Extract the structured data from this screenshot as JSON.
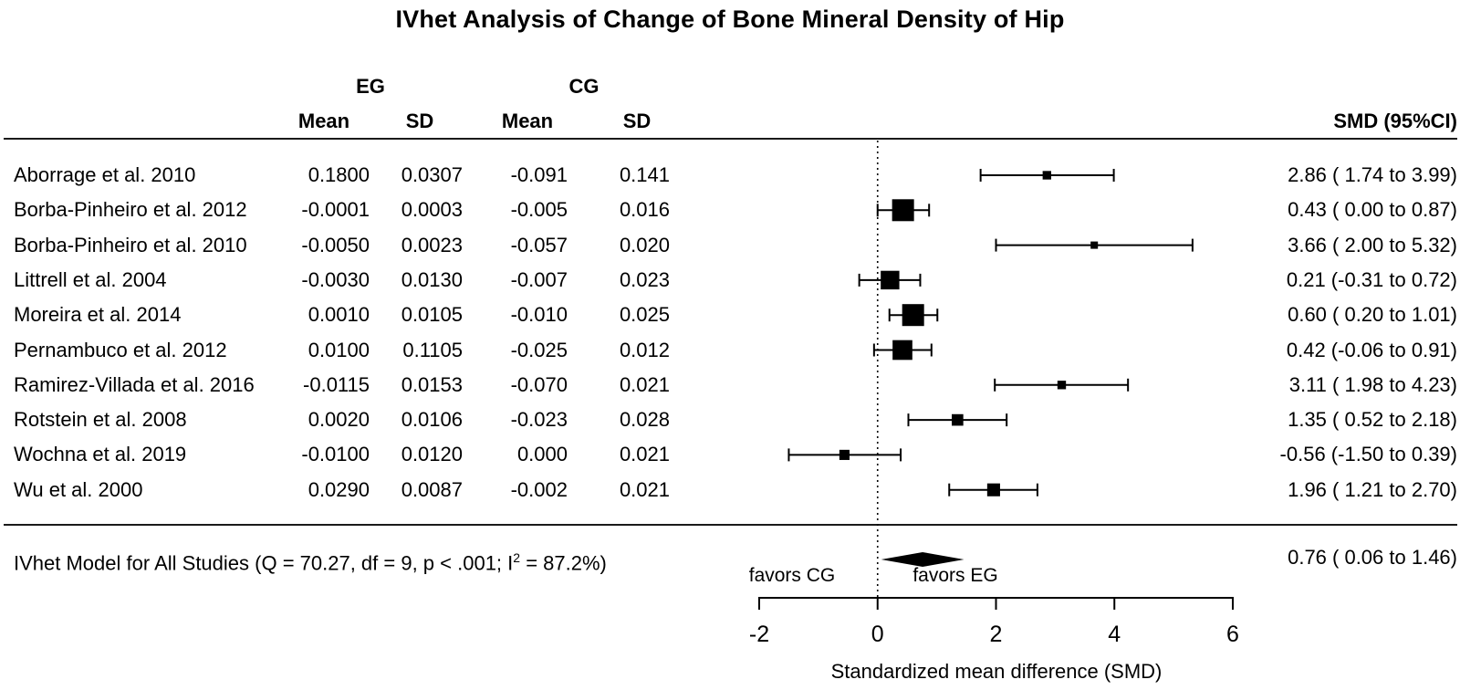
{
  "title": "IVhet Analysis of Change of Bone Mineral Density of Hip",
  "columns": {
    "eg_group": "EG",
    "cg_group": "CG",
    "eg_mean": "Mean",
    "eg_sd": "SD",
    "cg_mean": "Mean",
    "cg_sd": "SD",
    "smd_header": "SMD (95%CI)"
  },
  "chart_data": {
    "type": "forest",
    "title": "IVhet Analysis of Change of Bone Mineral Density of Hip",
    "xlabel": "Standardized mean difference (SMD)",
    "axis": {
      "min": -2,
      "max": 6,
      "ticks": [
        "-2",
        "0",
        "2",
        "4",
        "6"
      ],
      "tick_values": [
        -2,
        0,
        2,
        4,
        6
      ]
    },
    "zero_line": 0,
    "favors_left": "favors CG",
    "favors_right": "favors EG",
    "studies": [
      {
        "name": "Aborrage et al. 2010",
        "eg_mean": "0.1800",
        "eg_sd": "0.0307",
        "cg_mean": "-0.091",
        "cg_sd": "0.141",
        "smd": 2.86,
        "ci_low": 1.74,
        "ci_high": 3.99,
        "smd_label": "2.86 ( 1.74 to 3.99)"
      },
      {
        "name": "Borba-Pinheiro et al. 2012",
        "eg_mean": "-0.0001",
        "eg_sd": "0.0003",
        "cg_mean": "-0.005",
        "cg_sd": "0.016",
        "smd": 0.43,
        "ci_low": 0.0,
        "ci_high": 0.87,
        "smd_label": "0.43 ( 0.00 to 0.87)"
      },
      {
        "name": "Borba-Pinheiro et al. 2010",
        "eg_mean": "-0.0050",
        "eg_sd": "0.0023",
        "cg_mean": "-0.057",
        "cg_sd": "0.020",
        "smd": 3.66,
        "ci_low": 2.0,
        "ci_high": 5.32,
        "smd_label": "3.66 ( 2.00 to 5.32)"
      },
      {
        "name": "Littrell et al. 2004",
        "eg_mean": "-0.0030",
        "eg_sd": "0.0130",
        "cg_mean": "-0.007",
        "cg_sd": "0.023",
        "smd": 0.21,
        "ci_low": -0.31,
        "ci_high": 0.72,
        "smd_label": "0.21 (-0.31 to 0.72)"
      },
      {
        "name": "Moreira et al. 2014",
        "eg_mean": "0.0010",
        "eg_sd": "0.0105",
        "cg_mean": "-0.010",
        "cg_sd": "0.025",
        "smd": 0.6,
        "ci_low": 0.2,
        "ci_high": 1.01,
        "smd_label": "0.60 ( 0.20 to 1.01)"
      },
      {
        "name": "Pernambuco et al. 2012",
        "eg_mean": "0.0100",
        "eg_sd": "0.1105",
        "cg_mean": "-0.025",
        "cg_sd": "0.012",
        "smd": 0.42,
        "ci_low": -0.06,
        "ci_high": 0.91,
        "smd_label": "0.42 (-0.06 to 0.91)"
      },
      {
        "name": "Ramirez-Villada et al. 2016",
        "eg_mean": "-0.0115",
        "eg_sd": "0.0153",
        "cg_mean": "-0.070",
        "cg_sd": "0.021",
        "smd": 3.11,
        "ci_low": 1.98,
        "ci_high": 4.23,
        "smd_label": "3.11 ( 1.98 to 4.23)"
      },
      {
        "name": "Rotstein et al. 2008",
        "eg_mean": "0.0020",
        "eg_sd": "0.0106",
        "cg_mean": "-0.023",
        "cg_sd": "0.028",
        "smd": 1.35,
        "ci_low": 0.52,
        "ci_high": 2.18,
        "smd_label": "1.35 ( 0.52 to 2.18)"
      },
      {
        "name": "Wochna et al. 2019",
        "eg_mean": "-0.0100",
        "eg_sd": "0.0120",
        "cg_mean": "0.000",
        "cg_sd": "0.021",
        "smd": -0.56,
        "ci_low": -1.5,
        "ci_high": 0.39,
        "smd_label": "-0.56 (-1.50 to 0.39)"
      },
      {
        "name": "Wu et al. 2000",
        "eg_mean": "0.0290",
        "eg_sd": "0.0087",
        "cg_mean": "-0.002",
        "cg_sd": "0.021",
        "smd": 1.96,
        "ci_low": 1.21,
        "ci_high": 2.7,
        "smd_label": "1.96 ( 1.21 to 2.70)"
      }
    ],
    "summary": {
      "label_prefix": "IVhet Model for All Studies (Q = 70.27, df = 9, p < .001; I",
      "label_sup": "2",
      "label_suffix": " = 87.2%)",
      "smd": 0.76,
      "ci_low": 0.06,
      "ci_high": 1.46,
      "smd_label": "0.76 ( 0.06 to 1.46)"
    }
  }
}
